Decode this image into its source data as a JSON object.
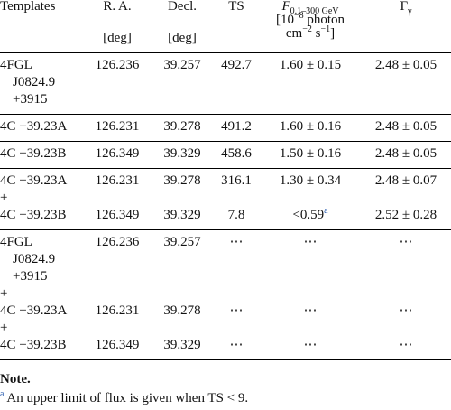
{
  "header": {
    "templates": "Templates",
    "ra": "R. A.",
    "decl": "Decl.",
    "ts": "TS",
    "ra_unit": "[deg]",
    "decl_unit": "[deg]",
    "flux": {
      "symbol": "F",
      "subscript": "0.1–300 GeV",
      "unit": [
        "[10",
        "−8",
        " photon",
        "cm",
        "−2",
        " s",
        "−1",
        "]"
      ]
    },
    "gamma": {
      "symbol": "Γ",
      "subscript": "γ"
    }
  },
  "groups": [
    [
      {
        "template": "4FGL J0824.9 +3915",
        "ra": "126.236",
        "decl": "39.257",
        "ts": "492.7",
        "flux": "1.60 ± 0.15",
        "gamma": "2.48 ± 0.05"
      }
    ],
    [
      {
        "template": "4C +39.23A",
        "ra": "126.231",
        "decl": "39.278",
        "ts": "491.2",
        "flux": "1.60 ± 0.16",
        "gamma": "2.48 ± 0.05"
      }
    ],
    [
      {
        "template": "4C +39.23B",
        "ra": "126.349",
        "decl": "39.329",
        "ts": "458.6",
        "flux": "1.50 ± 0.16",
        "gamma": "2.48 ± 0.05"
      }
    ],
    [
      {
        "template": "4C +39.23A",
        "ra": "126.231",
        "decl": "39.278",
        "ts": "316.1",
        "flux": "1.30 ± 0.34",
        "gamma": "2.48 ± 0.07"
      },
      {
        "template": "+"
      },
      {
        "template": "4C +39.23B",
        "ra": "126.349",
        "decl": "39.329",
        "ts": "7.8",
        "flux": "<0.59",
        "flux_note": "a",
        "gamma": "2.52 ± 0.28"
      }
    ],
    [
      {
        "template": "4FGL J0824.9 +3915",
        "ra": "126.236",
        "decl": "39.257",
        "ts": "⋯",
        "flux": "⋯",
        "gamma": "⋯"
      },
      {
        "template": "+"
      },
      {
        "template": "4C +39.23A",
        "ra": "126.231",
        "decl": "39.278",
        "ts": "⋯",
        "flux": "⋯",
        "gamma": "⋯"
      },
      {
        "template": "+"
      },
      {
        "template": "4C +39.23B",
        "ra": "126.349",
        "decl": "39.329",
        "ts": "⋯",
        "flux": "⋯",
        "gamma": "⋯"
      }
    ]
  ],
  "note": {
    "heading": "Note.",
    "marker": "a",
    "text": "An upper limit of flux is given when TS < 9."
  }
}
